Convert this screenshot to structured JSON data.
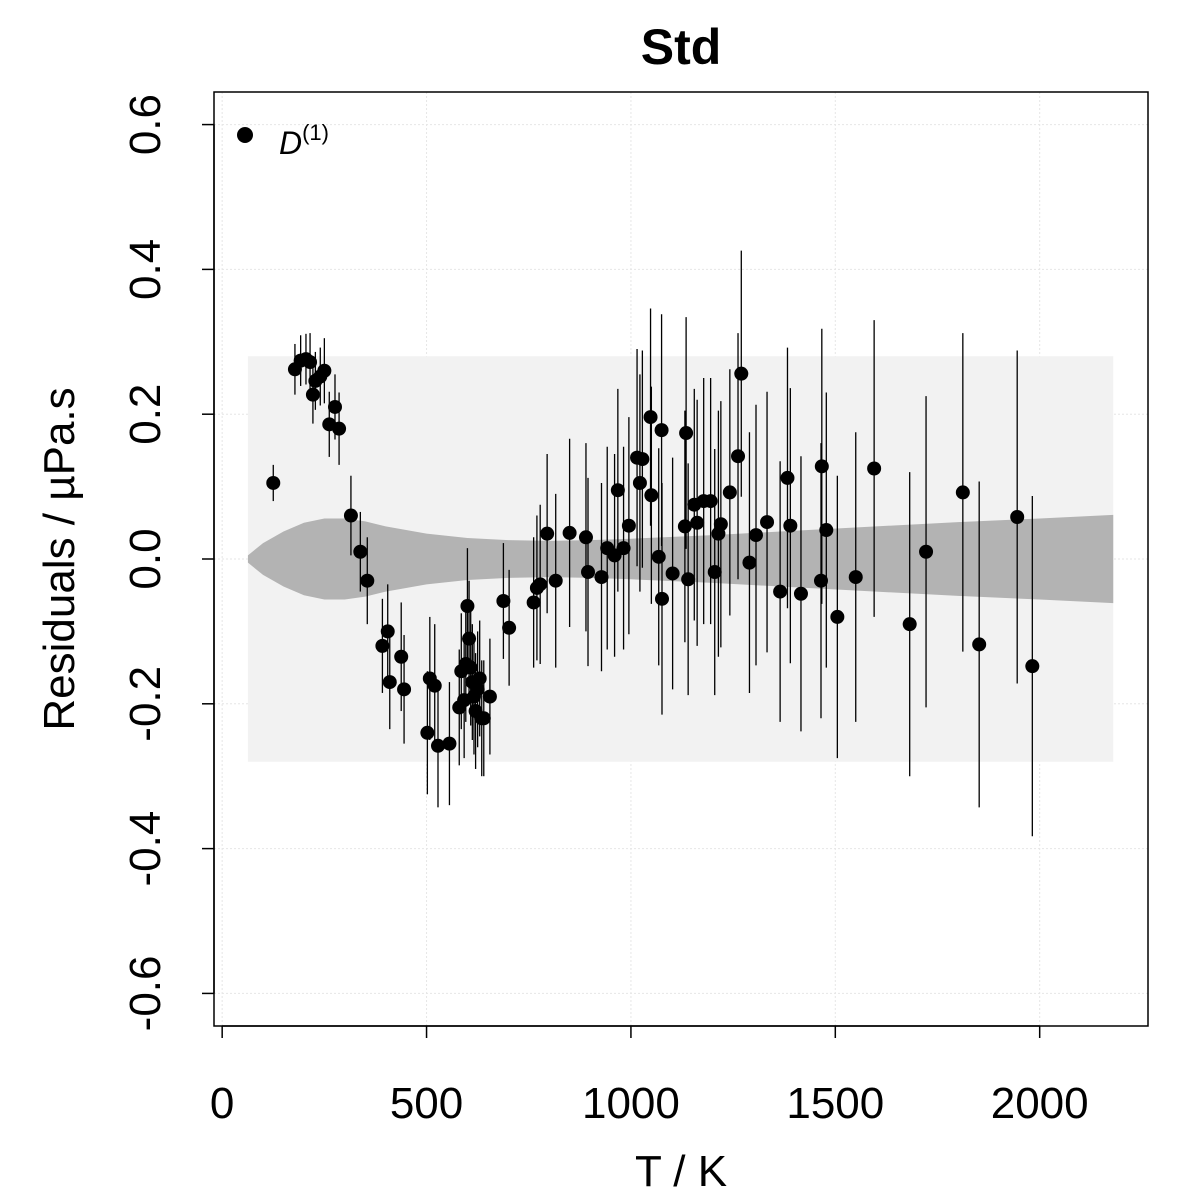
{
  "chart_data": {
    "type": "scatter",
    "title": "Std",
    "xlabel": "T / K",
    "ylabel": "Residuals / µPa.s",
    "xlim": [
      -20,
      2265
    ],
    "ylim": [
      -0.645,
      0.645
    ],
    "x_ticks": [
      0,
      500,
      1000,
      1500,
      2000
    ],
    "x_tick_labels": [
      "0",
      "500",
      "1000",
      "1500",
      "2000"
    ],
    "y_ticks": [
      -0.6,
      -0.4,
      -0.2,
      0.0,
      0.2,
      0.4,
      0.6
    ],
    "y_tick_labels": [
      "-0.6",
      "-0.4",
      "-0.2",
      "0.0",
      "0.2",
      "0.4",
      "0.6"
    ],
    "grid": true,
    "legend": {
      "position": "top-left",
      "entries": [
        {
          "base": "D",
          "sup": "(1)"
        }
      ]
    },
    "bands": {
      "x": [
        63,
        100,
        150,
        200,
        250,
        300,
        350,
        400,
        500,
        600,
        700,
        800,
        900,
        1000,
        1200,
        1400,
        1600,
        1800,
        2000,
        2180
      ],
      "outer_upper": [
        0.28,
        0.28,
        0.28,
        0.28,
        0.28,
        0.28,
        0.28,
        0.28,
        0.28,
        0.28,
        0.28,
        0.28,
        0.28,
        0.28,
        0.28,
        0.28,
        0.28,
        0.28,
        0.28,
        0.28
      ],
      "outer_lower": [
        -0.28,
        -0.28,
        -0.28,
        -0.28,
        -0.28,
        -0.28,
        -0.28,
        -0.28,
        -0.28,
        -0.28,
        -0.28,
        -0.28,
        -0.28,
        -0.28,
        -0.28,
        -0.28,
        -0.28,
        -0.28,
        -0.28,
        -0.28
      ],
      "inner_upper": [
        0.005,
        0.022,
        0.038,
        0.05,
        0.056,
        0.056,
        0.052,
        0.045,
        0.035,
        0.029,
        0.026,
        0.025,
        0.026,
        0.028,
        0.033,
        0.039,
        0.045,
        0.051,
        0.056,
        0.061
      ],
      "inner_lower": [
        -0.005,
        -0.022,
        -0.038,
        -0.05,
        -0.056,
        -0.056,
        -0.052,
        -0.045,
        -0.035,
        -0.029,
        -0.026,
        -0.025,
        -0.026,
        -0.028,
        -0.033,
        -0.039,
        -0.045,
        -0.051,
        -0.056,
        -0.061
      ],
      "outer_color": "#f2f2f2",
      "inner_color": "#b3b3b3"
    },
    "series": [
      {
        "name": "D(1)",
        "points": [
          [
            125,
            0.105,
            0.025
          ],
          [
            178,
            0.262,
            0.035
          ],
          [
            192,
            0.274,
            0.035
          ],
          [
            205,
            0.276,
            0.035
          ],
          [
            215,
            0.272,
            0.04
          ],
          [
            222,
            0.227,
            0.04
          ],
          [
            228,
            0.246,
            0.04
          ],
          [
            240,
            0.252,
            0.04
          ],
          [
            250,
            0.26,
            0.045
          ],
          [
            262,
            0.186,
            0.045
          ],
          [
            276,
            0.21,
            0.045
          ],
          [
            286,
            0.18,
            0.05
          ],
          [
            315,
            0.06,
            0.055
          ],
          [
            338,
            0.01,
            0.055
          ],
          [
            355,
            -0.03,
            0.06
          ],
          [
            392,
            -0.12,
            0.065
          ],
          [
            405,
            -0.1,
            0.065
          ],
          [
            410,
            -0.17,
            0.065
          ],
          [
            438,
            -0.135,
            0.075
          ],
          [
            445,
            -0.18,
            0.075
          ],
          [
            502,
            -0.24,
            0.085
          ],
          [
            508,
            -0.165,
            0.085
          ],
          [
            520,
            -0.175,
            0.085
          ],
          [
            528,
            -0.258,
            0.085
          ],
          [
            556,
            -0.255,
            0.085
          ],
          [
            580,
            -0.205,
            0.08
          ],
          [
            585,
            -0.155,
            0.08
          ],
          [
            592,
            -0.195,
            0.08
          ],
          [
            596,
            -0.145,
            0.08
          ],
          [
            600,
            -0.065,
            0.08
          ],
          [
            604,
            -0.11,
            0.08
          ],
          [
            608,
            -0.15,
            0.08
          ],
          [
            612,
            -0.17,
            0.08
          ],
          [
            616,
            -0.19,
            0.08
          ],
          [
            620,
            -0.21,
            0.08
          ],
          [
            625,
            -0.18,
            0.08
          ],
          [
            630,
            -0.165,
            0.08
          ],
          [
            635,
            -0.22,
            0.08
          ],
          [
            640,
            -0.22,
            0.08
          ],
          [
            655,
            -0.19,
            0.08
          ],
          [
            688,
            -0.058,
            0.08
          ],
          [
            702,
            -0.095,
            0.08
          ],
          [
            762,
            -0.06,
            0.09
          ],
          [
            770,
            -0.04,
            0.1
          ],
          [
            778,
            -0.035,
            0.11
          ],
          [
            795,
            0.035,
            0.11
          ],
          [
            816,
            -0.03,
            0.12
          ],
          [
            850,
            0.036,
            0.13
          ],
          [
            890,
            0.03,
            0.13
          ],
          [
            895,
            -0.018,
            0.13
          ],
          [
            928,
            -0.025,
            0.13
          ],
          [
            942,
            0.015,
            0.14
          ],
          [
            960,
            0.005,
            0.14
          ],
          [
            968,
            0.095,
            0.14
          ],
          [
            982,
            0.015,
            0.14
          ],
          [
            995,
            0.046,
            0.15
          ],
          [
            1015,
            0.14,
            0.15
          ],
          [
            1022,
            0.105,
            0.15
          ],
          [
            1028,
            0.138,
            0.15
          ],
          [
            1048,
            0.196,
            0.15
          ],
          [
            1050,
            0.088,
            0.15
          ],
          [
            1068,
            0.003,
            0.15
          ],
          [
            1075,
            0.178,
            0.16
          ],
          [
            1076,
            -0.055,
            0.16
          ],
          [
            1102,
            -0.02,
            0.16
          ],
          [
            1132,
            0.045,
            0.16
          ],
          [
            1135,
            0.174,
            0.16
          ],
          [
            1140,
            -0.028,
            0.16
          ],
          [
            1155,
            0.075,
            0.16
          ],
          [
            1162,
            0.05,
            0.17
          ],
          [
            1178,
            0.08,
            0.17
          ],
          [
            1195,
            0.08,
            0.17
          ],
          [
            1205,
            -0.018,
            0.17
          ],
          [
            1214,
            0.035,
            0.17
          ],
          [
            1220,
            0.048,
            0.17
          ],
          [
            1242,
            0.092,
            0.17
          ],
          [
            1262,
            0.142,
            0.17
          ],
          [
            1270,
            0.256,
            0.17
          ],
          [
            1290,
            -0.005,
            0.18
          ],
          [
            1306,
            0.033,
            0.18
          ],
          [
            1333,
            0.051,
            0.18
          ],
          [
            1365,
            -0.045,
            0.18
          ],
          [
            1383,
            0.112,
            0.18
          ],
          [
            1390,
            0.046,
            0.19
          ],
          [
            1416,
            -0.048,
            0.19
          ],
          [
            1465,
            -0.03,
            0.19
          ],
          [
            1467,
            0.128,
            0.19
          ],
          [
            1478,
            0.04,
            0.19
          ],
          [
            1505,
            -0.08,
            0.195
          ],
          [
            1550,
            -0.025,
            0.2
          ],
          [
            1595,
            0.125,
            0.205
          ],
          [
            1682,
            -0.09,
            0.21
          ],
          [
            1722,
            0.01,
            0.215
          ],
          [
            1812,
            0.092,
            0.22
          ],
          [
            1852,
            -0.118,
            0.225
          ],
          [
            1945,
            0.058,
            0.23
          ],
          [
            1982,
            -0.148,
            0.235
          ]
        ]
      }
    ]
  }
}
